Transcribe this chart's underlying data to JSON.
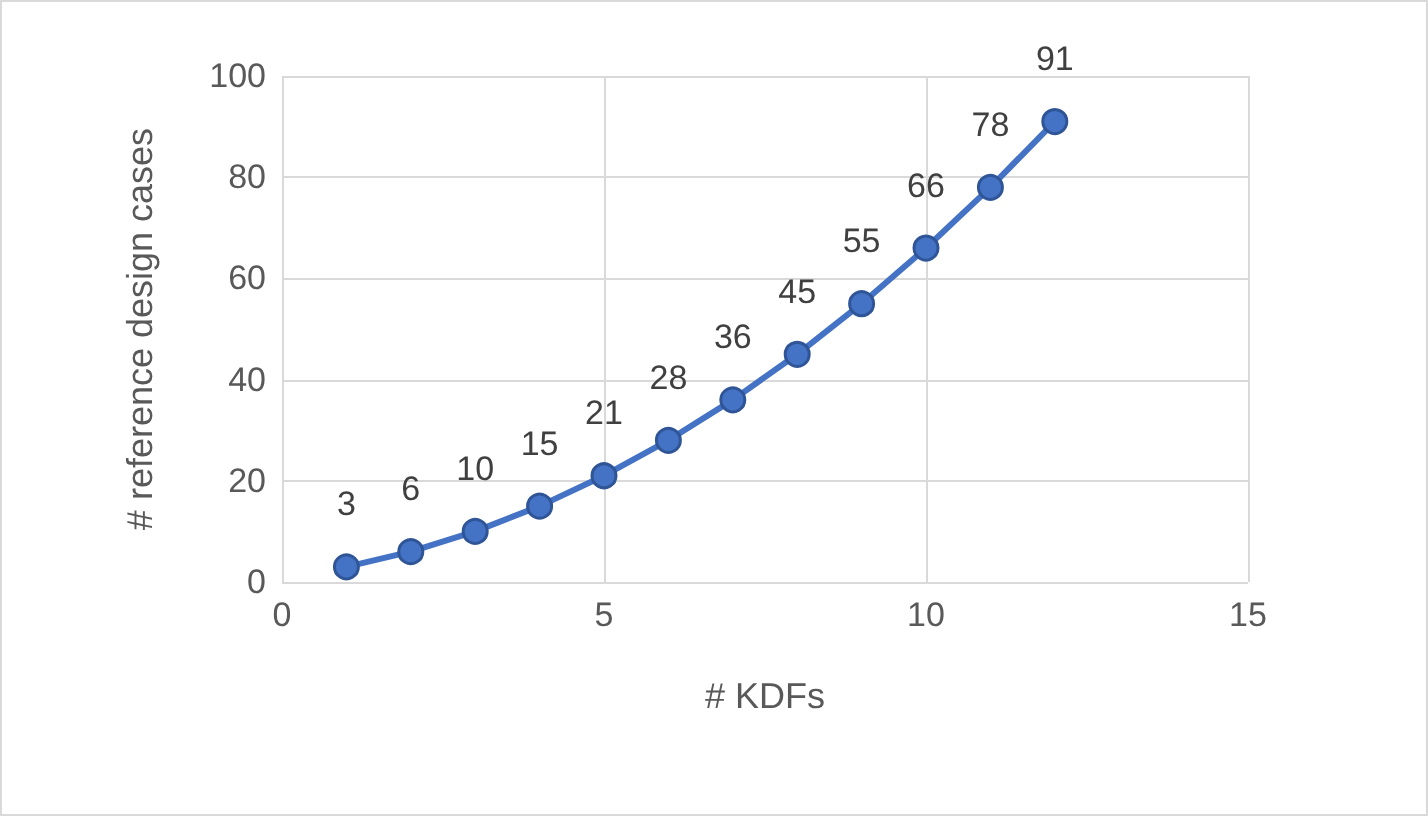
{
  "chart_data": {
    "type": "line",
    "xlabel": "# KDFs",
    "ylabel": "# reference design cases",
    "x": [
      1,
      2,
      3,
      4,
      5,
      6,
      7,
      8,
      9,
      10,
      11,
      12
    ],
    "series": [
      {
        "color": "#4472c4",
        "values": [
          3,
          6,
          10,
          15,
          21,
          28,
          36,
          45,
          55,
          66,
          78,
          91
        ]
      }
    ],
    "xlim": [
      0,
      15
    ],
    "xticks": [
      0,
      5,
      10,
      15
    ],
    "ylim": [
      0,
      100
    ],
    "yticks": [
      0,
      20,
      40,
      60,
      80,
      100
    ],
    "grid": true,
    "marker": "circle",
    "line_style": "solid",
    "data_labels": true
  }
}
